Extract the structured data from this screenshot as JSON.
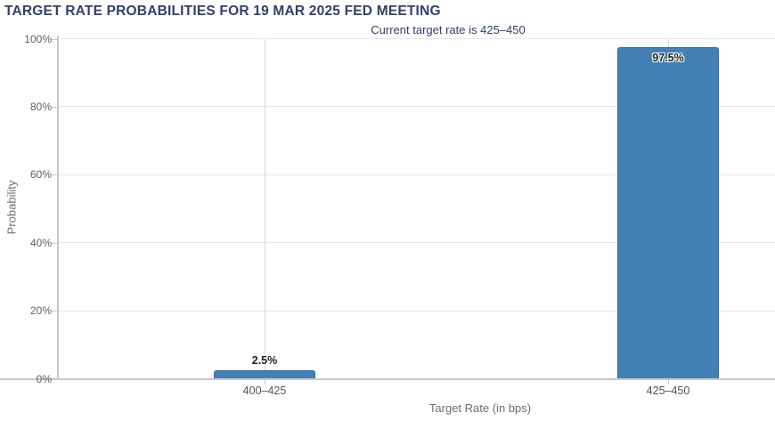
{
  "header": {
    "title": "TARGET RATE PROBABILITIES FOR 19 MAR 2025 FED MEETING",
    "subtitle": "Current target rate is 425–450"
  },
  "chart_data": {
    "type": "bar",
    "title": "TARGET RATE PROBABILITIES FOR 19 MAR 2025 FED MEETING",
    "subtitle": "Current target rate is 425–450",
    "categories": [
      "400–425",
      "425–450"
    ],
    "values": [
      2.5,
      97.5
    ],
    "value_labels": [
      "2.5%",
      "97.5%"
    ],
    "xlabel": "Target Rate (in bps)",
    "ylabel": "Probability",
    "ylim": [
      0,
      100
    ],
    "yticks": [
      0,
      20,
      40,
      60,
      80,
      100
    ],
    "ytick_labels": [
      "0%",
      "20%",
      "40%",
      "60%",
      "80%",
      "100%"
    ],
    "grid": true,
    "legend": false,
    "bar_color": "#4280b6",
    "bar_border_color": "#35699b",
    "title_color": "#31406b"
  }
}
